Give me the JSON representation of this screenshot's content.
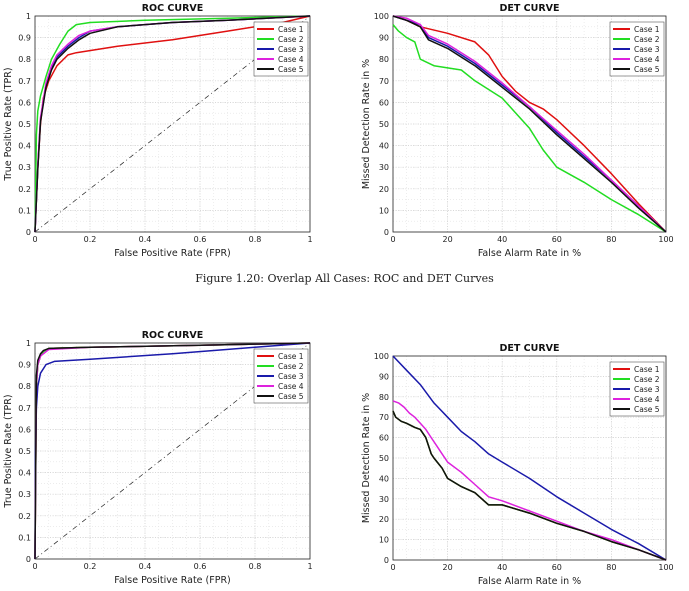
{
  "figure": {
    "caption": "Figure 1.20: Overlap All Cases: ROC and DET Curves"
  },
  "chart_data": [
    {
      "type": "line",
      "title": "ROC CURVE",
      "xlabel": "False Positive Rate (FPR)",
      "ylabel": "True Positive Rate (TPR)",
      "xlim": [
        0,
        1
      ],
      "ylim": [
        0,
        1
      ],
      "xticks": [
        "0",
        "0.2",
        "0.4",
        "0.6",
        "0.8",
        "1"
      ],
      "yticks": [
        "0",
        "0.1",
        "0.2",
        "0.3",
        "0.4",
        "0.5",
        "0.6",
        "0.7",
        "0.8",
        "0.9",
        "1"
      ],
      "grid": true,
      "legend": "top-right",
      "reference_line": [
        [
          0,
          0
        ],
        [
          1,
          1
        ]
      ],
      "series": [
        {
          "name": "Case 1",
          "color": "#e01010",
          "x": [
            0,
            0.01,
            0.02,
            0.03,
            0.05,
            0.08,
            0.12,
            0.15,
            0.3,
            0.5,
            0.7,
            0.9,
            1
          ],
          "y": [
            0,
            0.3,
            0.5,
            0.62,
            0.7,
            0.77,
            0.82,
            0.83,
            0.86,
            0.89,
            0.93,
            0.97,
            1
          ]
        },
        {
          "name": "Case 2",
          "color": "#22dd22",
          "x": [
            0,
            0.005,
            0.01,
            0.02,
            0.04,
            0.06,
            0.09,
            0.12,
            0.15,
            0.2,
            0.4,
            0.7,
            1
          ],
          "y": [
            0,
            0.45,
            0.56,
            0.63,
            0.72,
            0.8,
            0.87,
            0.93,
            0.96,
            0.97,
            0.98,
            0.99,
            1
          ]
        },
        {
          "name": "Case 3",
          "color": "#1a1aaa",
          "x": [
            0,
            0.01,
            0.02,
            0.04,
            0.06,
            0.08,
            0.12,
            0.16,
            0.2,
            0.3,
            0.5,
            0.7,
            1
          ],
          "y": [
            0,
            0.3,
            0.52,
            0.68,
            0.76,
            0.81,
            0.86,
            0.9,
            0.93,
            0.95,
            0.97,
            0.98,
            1
          ]
        },
        {
          "name": "Case 4",
          "color": "#dd22dd",
          "x": [
            0,
            0.01,
            0.02,
            0.04,
            0.06,
            0.08,
            0.12,
            0.16,
            0.2,
            0.3,
            0.5,
            0.7,
            1
          ],
          "y": [
            0,
            0.31,
            0.53,
            0.69,
            0.77,
            0.82,
            0.87,
            0.91,
            0.93,
            0.95,
            0.97,
            0.98,
            1
          ]
        },
        {
          "name": "Case 5",
          "color": "#111111",
          "x": [
            0,
            0.01,
            0.02,
            0.04,
            0.06,
            0.08,
            0.12,
            0.16,
            0.2,
            0.3,
            0.5,
            0.7,
            1
          ],
          "y": [
            0,
            0.29,
            0.51,
            0.67,
            0.75,
            0.8,
            0.85,
            0.89,
            0.92,
            0.95,
            0.97,
            0.98,
            1
          ]
        }
      ]
    },
    {
      "type": "line",
      "title": "DET CURVE",
      "xlabel": "False Alarm Rate in %",
      "ylabel": "Missed Detection Rate in %",
      "xlim": [
        0,
        100
      ],
      "ylim": [
        0,
        100
      ],
      "xticks": [
        "0",
        "20",
        "40",
        "60",
        "80",
        "100"
      ],
      "yticks": [
        "0",
        "10",
        "20",
        "30",
        "40",
        "50",
        "60",
        "70",
        "80",
        "90",
        "100"
      ],
      "grid": true,
      "legend": "top-right",
      "series": [
        {
          "name": "Case 1",
          "color": "#e01010",
          "x": [
            0,
            5,
            10,
            20,
            30,
            35,
            40,
            45,
            50,
            55,
            60,
            70,
            80,
            90,
            100
          ],
          "y": [
            100,
            98,
            95,
            92,
            88,
            82,
            72,
            65,
            60,
            57,
            52,
            40,
            27,
            13,
            0
          ]
        },
        {
          "name": "Case 2",
          "color": "#22dd22",
          "x": [
            0,
            2,
            5,
            8,
            10,
            15,
            25,
            30,
            40,
            45,
            50,
            55,
            60,
            70,
            80,
            90,
            100
          ],
          "y": [
            96,
            93,
            90,
            88,
            80,
            77,
            75,
            70,
            62,
            55,
            48,
            38,
            30,
            23,
            15,
            8,
            0
          ]
        },
        {
          "name": "Case 3",
          "color": "#1a1aaa",
          "x": [
            0,
            5,
            10,
            13,
            20,
            30,
            40,
            50,
            60,
            70,
            80,
            90,
            100
          ],
          "y": [
            100,
            98,
            96,
            90,
            86,
            78,
            68,
            58,
            46,
            35,
            24,
            12,
            0
          ]
        },
        {
          "name": "Case 4",
          "color": "#dd22dd",
          "x": [
            0,
            5,
            10,
            13,
            20,
            30,
            40,
            50,
            60,
            70,
            80,
            90,
            100
          ],
          "y": [
            100,
            99,
            96,
            91,
            87,
            79,
            69,
            58,
            47,
            36,
            24,
            12,
            0
          ]
        },
        {
          "name": "Case 5",
          "color": "#111111",
          "x": [
            0,
            5,
            10,
            13,
            20,
            30,
            40,
            50,
            60,
            70,
            80,
            90,
            100
          ],
          "y": [
            100,
            98,
            95,
            89,
            85,
            77,
            67,
            57,
            45,
            34,
            23,
            11,
            0
          ]
        }
      ]
    },
    {
      "type": "line",
      "title": "ROC CURVE",
      "xlabel": "False Positive Rate (FPR)",
      "ylabel": "True Positive Rate (TPR)",
      "xlim": [
        0,
        1
      ],
      "ylim": [
        0,
        1
      ],
      "xticks": [
        "0",
        "0.2",
        "0.4",
        "0.6",
        "0.8",
        "1"
      ],
      "yticks": [
        "0",
        "0.1",
        "0.2",
        "0.3",
        "0.4",
        "0.5",
        "0.6",
        "0.7",
        "0.8",
        "0.9",
        "1"
      ],
      "grid": true,
      "legend": "top-right",
      "reference_line": [
        [
          0,
          0
        ],
        [
          1,
          1
        ]
      ],
      "series": [
        {
          "name": "Case 1",
          "color": "#e01010",
          "x": [
            0,
            0.005,
            0.01,
            0.02,
            0.03,
            0.05,
            0.2,
            0.6,
            1
          ],
          "y": [
            0,
            0.8,
            0.9,
            0.94,
            0.96,
            0.975,
            0.98,
            0.99,
            1
          ]
        },
        {
          "name": "Case 2",
          "color": "#22dd22",
          "x": [
            0,
            0.005,
            0.01,
            0.02,
            0.03,
            0.05,
            0.2,
            0.6,
            1
          ],
          "y": [
            0,
            0.8,
            0.9,
            0.94,
            0.96,
            0.975,
            0.98,
            0.99,
            1
          ]
        },
        {
          "name": "Case 3",
          "color": "#1a1aaa",
          "x": [
            0,
            0.002,
            0.005,
            0.01,
            0.02,
            0.04,
            0.07,
            0.2,
            0.5,
            0.8,
            1
          ],
          "y": [
            0,
            0.5,
            0.7,
            0.8,
            0.86,
            0.9,
            0.915,
            0.925,
            0.95,
            0.98,
            1
          ]
        },
        {
          "name": "Case 4",
          "color": "#dd22dd",
          "x": [
            0,
            0.005,
            0.01,
            0.02,
            0.03,
            0.05,
            0.2,
            0.6,
            1
          ],
          "y": [
            0,
            0.81,
            0.9,
            0.94,
            0.95,
            0.97,
            0.98,
            0.99,
            1
          ]
        },
        {
          "name": "Case 5",
          "color": "#111111",
          "x": [
            0,
            0.005,
            0.01,
            0.02,
            0.03,
            0.05,
            0.2,
            0.6,
            1
          ],
          "y": [
            0,
            0.85,
            0.92,
            0.95,
            0.965,
            0.975,
            0.98,
            0.99,
            1
          ]
        }
      ]
    },
    {
      "type": "line",
      "title": "DET CURVE",
      "xlabel": "False Alarm Rate in %",
      "ylabel": "Missed Detection Rate in %",
      "xlim": [
        0,
        100
      ],
      "ylim": [
        0,
        100
      ],
      "xticks": [
        "0",
        "20",
        "40",
        "60",
        "80",
        "100"
      ],
      "yticks": [
        "0",
        "10",
        "20",
        "30",
        "40",
        "50",
        "60",
        "70",
        "80",
        "90",
        "100"
      ],
      "grid": true,
      "legend": "top-right",
      "series": [
        {
          "name": "Case 1",
          "color": "#e01010",
          "x": [
            0,
            1,
            3,
            5,
            8,
            10,
            12,
            14,
            15,
            18,
            20,
            25,
            30,
            35,
            40,
            50,
            60,
            70,
            80,
            90,
            100
          ],
          "y": [
            73,
            70,
            68,
            67,
            65,
            64,
            60,
            52,
            50,
            45,
            40,
            36,
            33,
            27,
            27,
            23,
            18,
            14,
            9,
            5,
            0
          ]
        },
        {
          "name": "Case 2",
          "color": "#22dd22",
          "x": [
            0,
            1,
            3,
            5,
            8,
            10,
            12,
            14,
            15,
            18,
            20,
            25,
            30,
            35,
            40,
            50,
            60,
            70,
            80,
            90,
            100
          ],
          "y": [
            73,
            70,
            68,
            67,
            65,
            64,
            60,
            52,
            50,
            45,
            40,
            36,
            33,
            27,
            27,
            23,
            18,
            14,
            9,
            5,
            0
          ]
        },
        {
          "name": "Case 3",
          "color": "#1a1aaa",
          "x": [
            0,
            5,
            10,
            15,
            20,
            25,
            30,
            35,
            40,
            50,
            60,
            70,
            80,
            90,
            100
          ],
          "y": [
            100,
            93,
            86,
            77,
            70,
            63,
            58,
            52,
            48,
            40,
            31,
            23,
            15,
            8,
            0
          ]
        },
        {
          "name": "Case 4",
          "color": "#dd22dd",
          "x": [
            0,
            2,
            4,
            6,
            8,
            10,
            12,
            14,
            16,
            18,
            20,
            25,
            30,
            35,
            40,
            50,
            60,
            70,
            80,
            90,
            100
          ],
          "y": [
            78,
            77,
            75,
            72,
            70,
            67,
            64,
            60,
            56,
            52,
            48,
            43,
            37,
            31,
            29,
            24,
            19,
            14,
            10,
            5,
            0
          ]
        },
        {
          "name": "Case 5",
          "color": "#111111",
          "x": [
            0,
            1,
            3,
            5,
            8,
            10,
            12,
            14,
            15,
            18,
            20,
            25,
            30,
            35,
            40,
            50,
            60,
            70,
            80,
            90,
            100
          ],
          "y": [
            73,
            70,
            68,
            67,
            65,
            64,
            60,
            52,
            50,
            45,
            40,
            36,
            33,
            27,
            27,
            23,
            18,
            14,
            9,
            5,
            0
          ]
        }
      ]
    }
  ]
}
